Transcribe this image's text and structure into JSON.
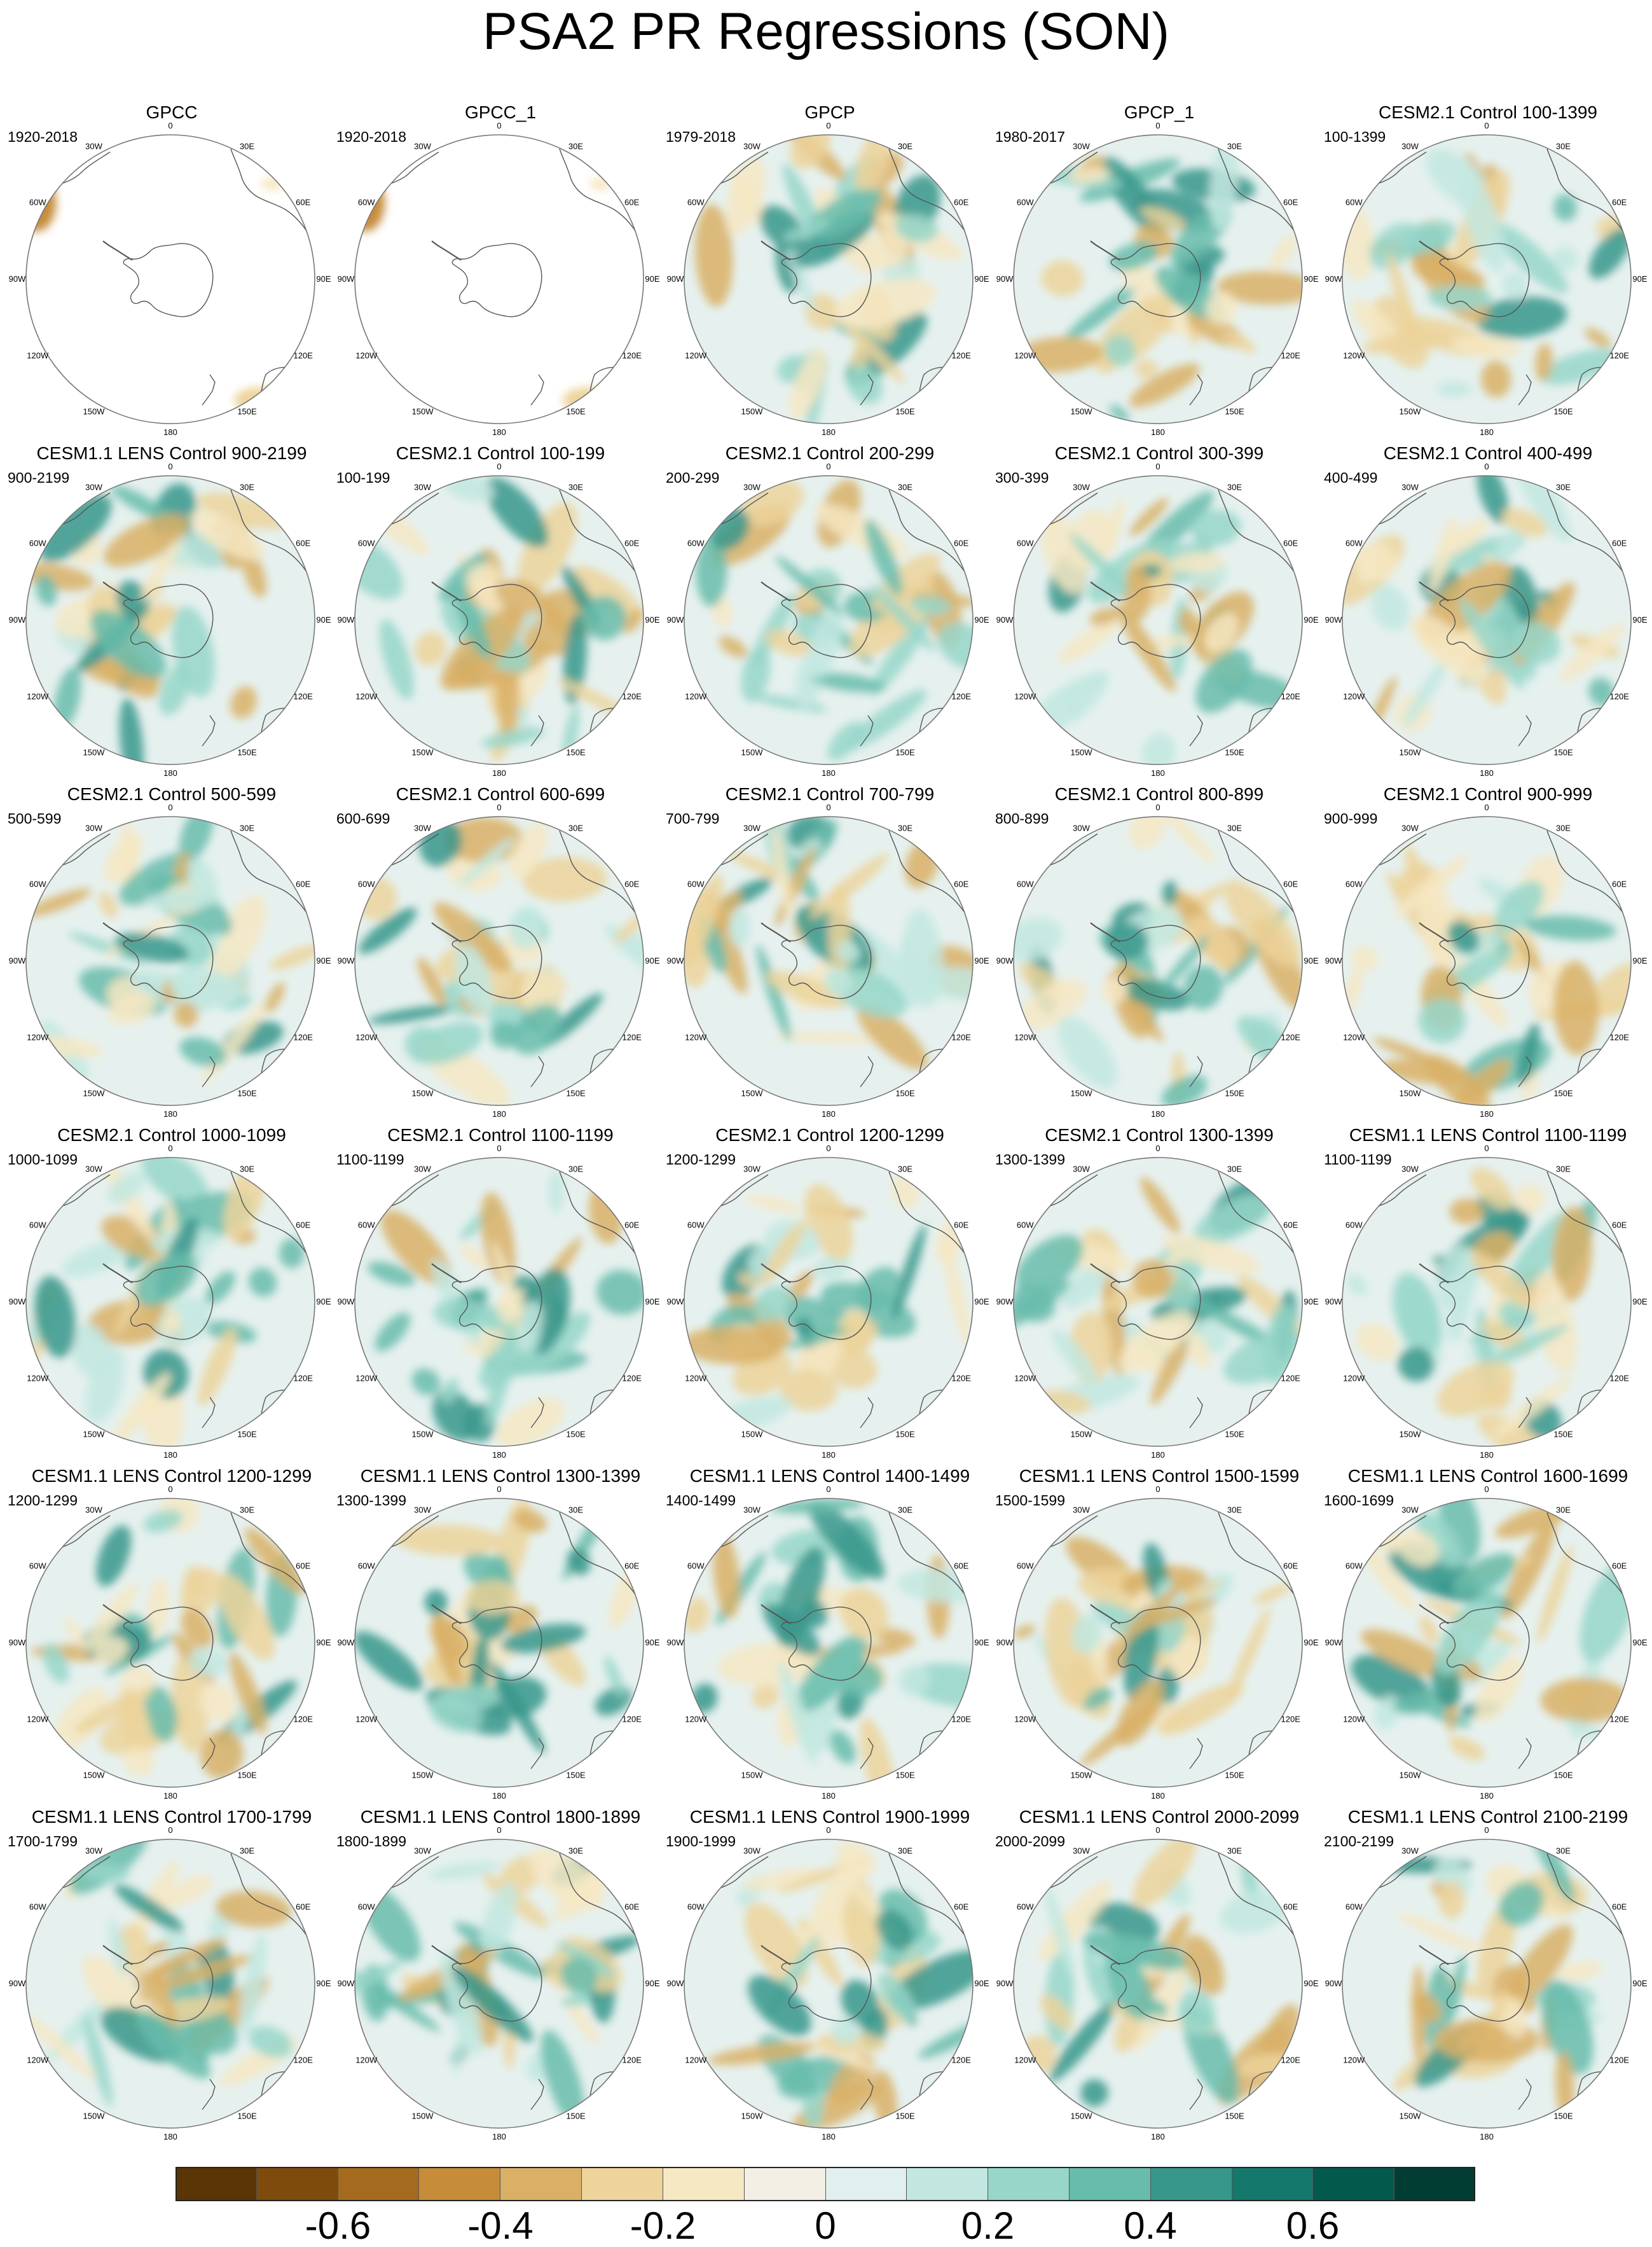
{
  "title": "PSA2 PR Regressions (SON)",
  "longitude_labels": [
    "0",
    "30E",
    "60E",
    "90E",
    "120E",
    "150E",
    "180",
    "150W",
    "120W",
    "90W",
    "60W",
    "30W"
  ],
  "panels": [
    {
      "title": "GPCC",
      "period": "1920-2018"
    },
    {
      "title": "GPCC_1",
      "period": "1920-2018"
    },
    {
      "title": "GPCP",
      "period": "1979-2018"
    },
    {
      "title": "GPCP_1",
      "period": "1980-2017"
    },
    {
      "title": "CESM2.1 Control 100-1399",
      "period": "100-1399"
    },
    {
      "title": "CESM1.1 LENS Control 900-2199",
      "period": "900-2199"
    },
    {
      "title": "CESM2.1 Control 100-199",
      "period": "100-199"
    },
    {
      "title": "CESM2.1 Control 200-299",
      "period": "200-299"
    },
    {
      "title": "CESM2.1 Control 300-399",
      "period": "300-399"
    },
    {
      "title": "CESM2.1 Control 400-499",
      "period": "400-499"
    },
    {
      "title": "CESM2.1 Control 500-599",
      "period": "500-599"
    },
    {
      "title": "CESM2.1 Control 600-699",
      "period": "600-699"
    },
    {
      "title": "CESM2.1 Control 700-799",
      "period": "700-799"
    },
    {
      "title": "CESM2.1 Control 800-899",
      "period": "800-899"
    },
    {
      "title": "CESM2.1 Control 900-999",
      "period": "900-999"
    },
    {
      "title": "CESM2.1 Control 1000-1099",
      "period": "1000-1099"
    },
    {
      "title": "CESM2.1 Control 1100-1199",
      "period": "1100-1199"
    },
    {
      "title": "CESM2.1 Control 1200-1299",
      "period": "1200-1299"
    },
    {
      "title": "CESM2.1 Control 1300-1399",
      "period": "1300-1399"
    },
    {
      "title": "CESM1.1 LENS Control 1100-1199",
      "period": "1100-1199"
    },
    {
      "title": "CESM1.1 LENS Control 1200-1299",
      "period": "1200-1299"
    },
    {
      "title": "CESM1.1 LENS Control 1300-1399",
      "period": "1300-1399"
    },
    {
      "title": "CESM1.1 LENS Control 1400-1499",
      "period": "1400-1499"
    },
    {
      "title": "CESM1.1 LENS Control 1500-1599",
      "period": "1500-1599"
    },
    {
      "title": "CESM1.1 LENS Control 1600-1699",
      "period": "1600-1699"
    },
    {
      "title": "CESM1.1 LENS Control 1700-1799",
      "period": "1700-1799"
    },
    {
      "title": "CESM1.1 LENS Control 1800-1899",
      "period": "1800-1899"
    },
    {
      "title": "CESM1.1 LENS Control 1900-1999",
      "period": "1900-1999"
    },
    {
      "title": "CESM1.1 LENS Control 2000-2099",
      "period": "2000-2099"
    },
    {
      "title": "CESM1.1 LENS Control 2100-2199",
      "period": "2100-2199"
    }
  ],
  "colorbar": {
    "colors": [
      "#5a3506",
      "#7e4b0c",
      "#a46a1e",
      "#c68c3a",
      "#d9b066",
      "#ecd49b",
      "#f6e8c3",
      "#f3efe4",
      "#e1f0ee",
      "#c2e7e1",
      "#97d6c9",
      "#67bcab",
      "#37978b",
      "#15786c",
      "#04594d",
      "#023d33"
    ],
    "tick_labels": [
      "-0.6",
      "-0.4",
      "-0.2",
      "0",
      "0.2",
      "0.4",
      "0.6"
    ]
  }
}
